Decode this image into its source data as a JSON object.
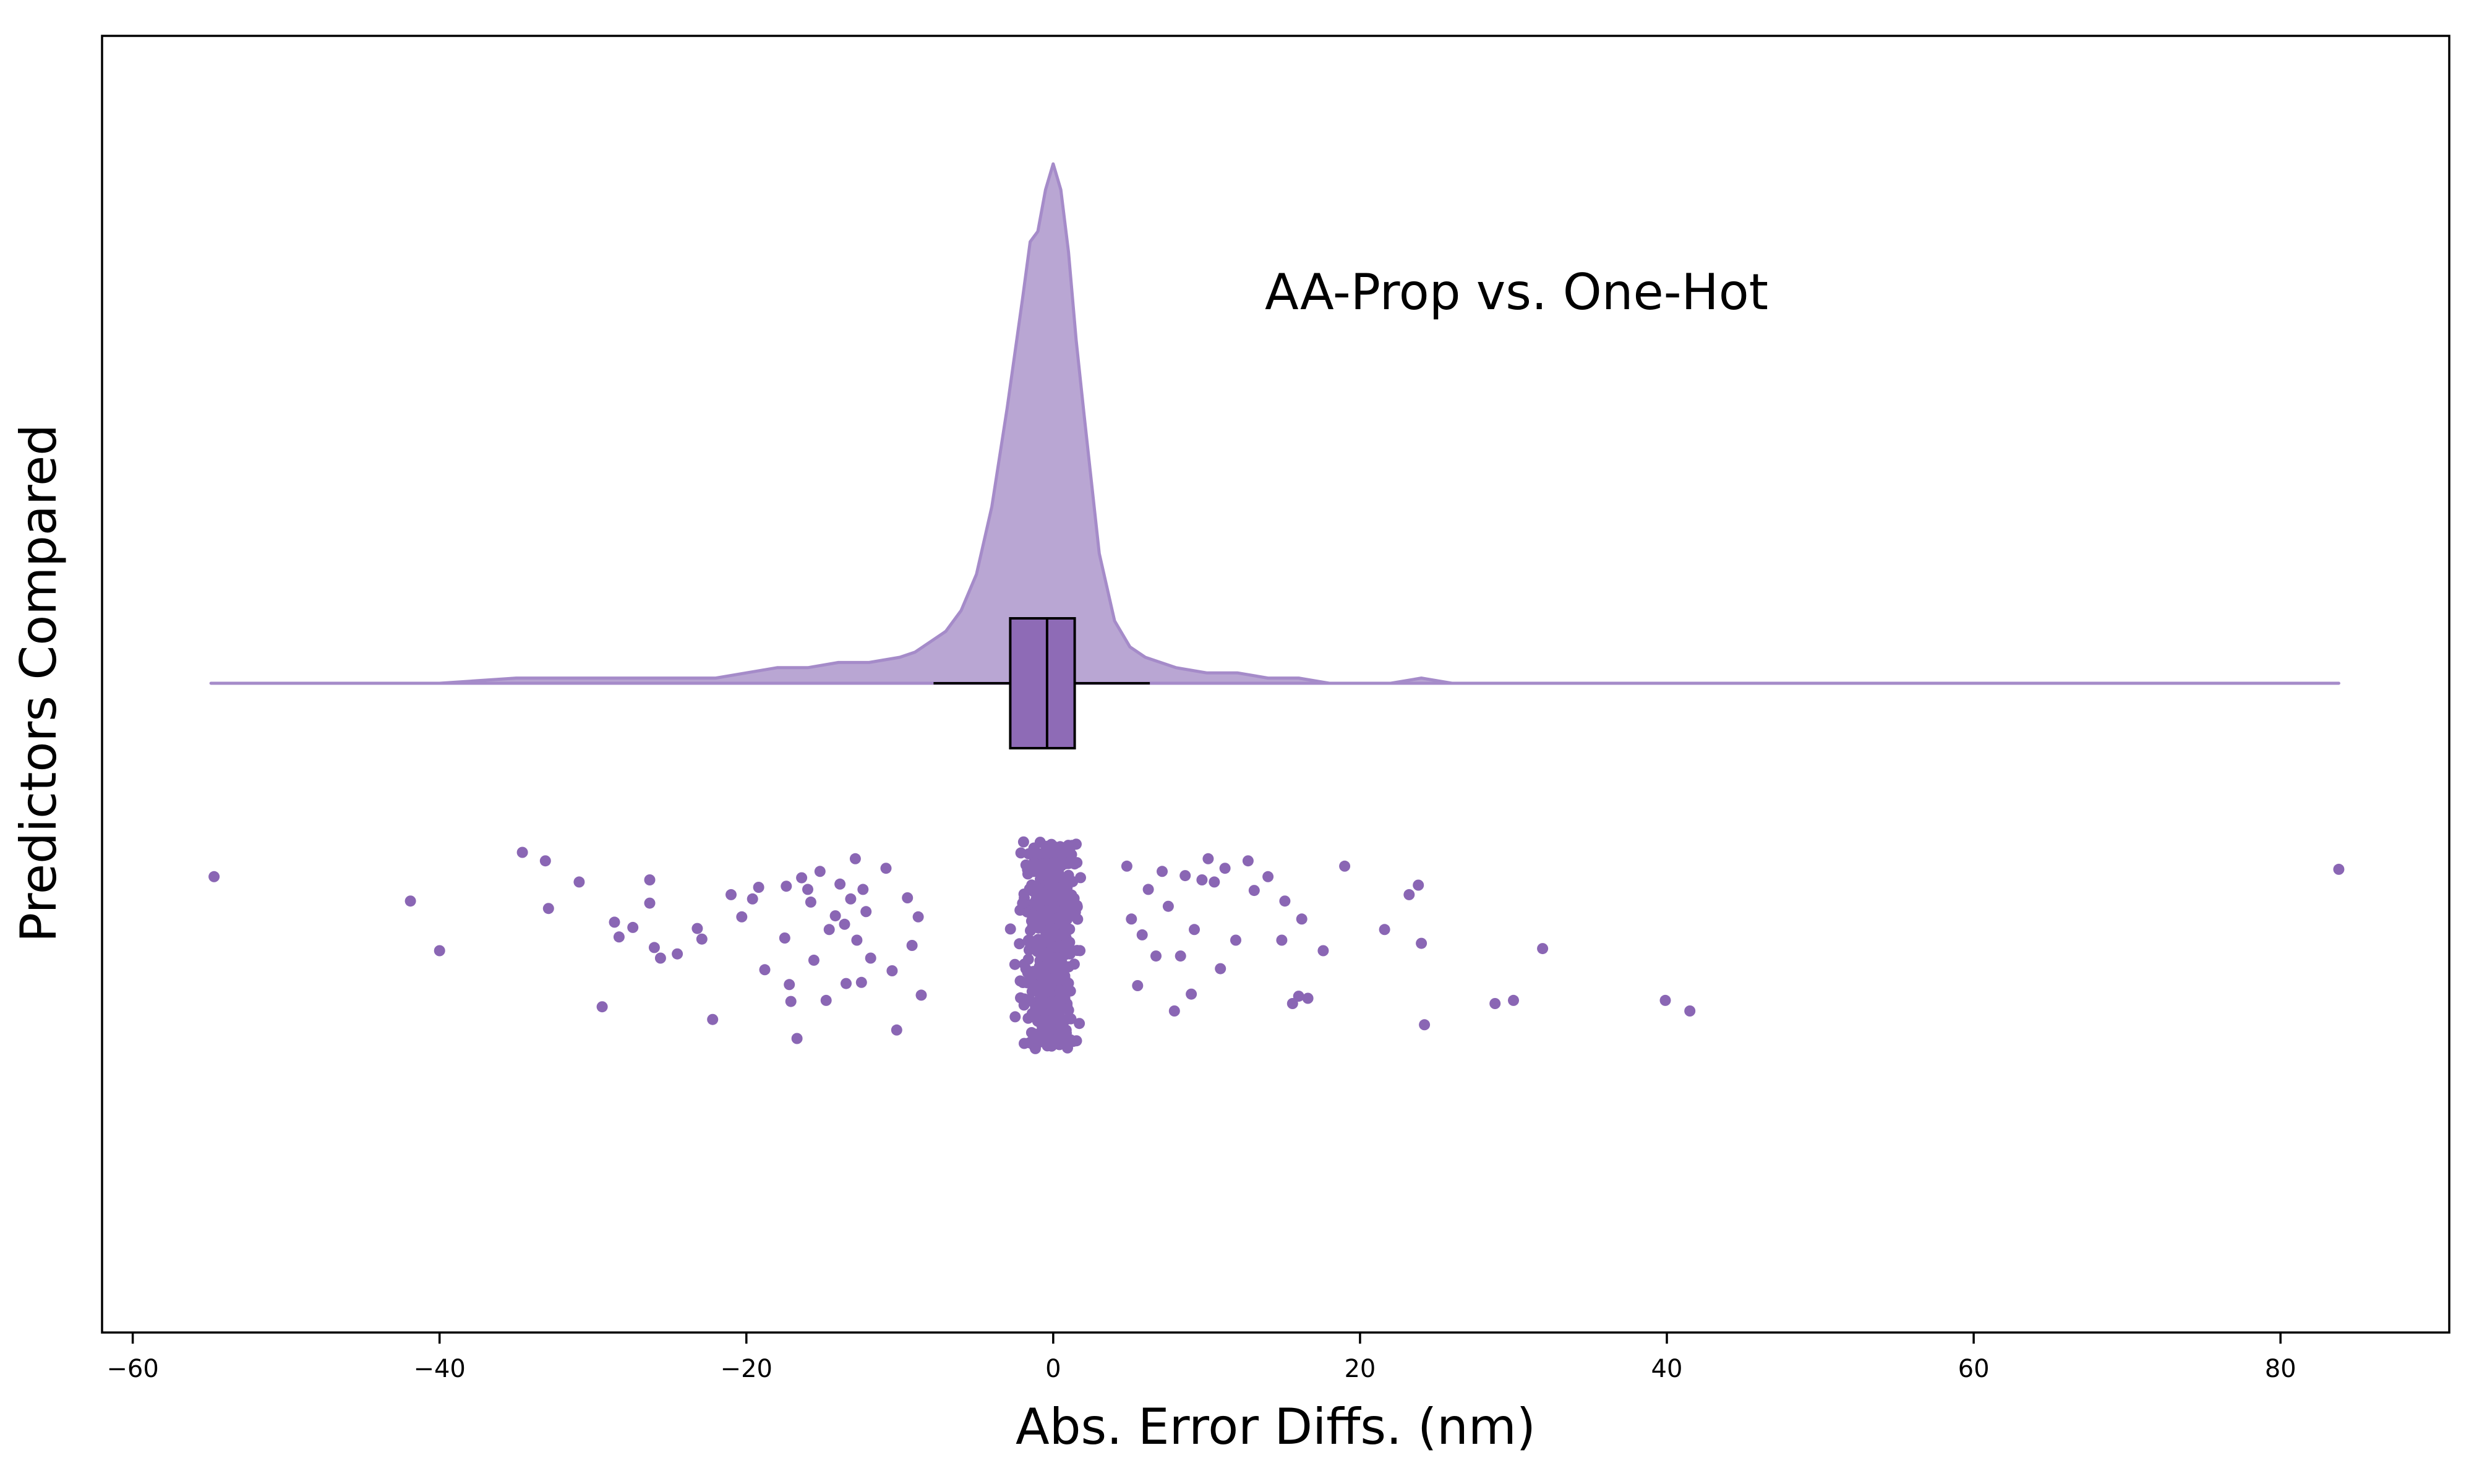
{
  "chart_data": {
    "type": "raincloud",
    "orientation": "horizontal",
    "annotation": "AA-Prop vs. One-Hot",
    "xlabel": "Abs. Error Diffs. (nm)",
    "ylabel": "Predictors Compared",
    "xlim": [
      -62,
      91
    ],
    "xticks": [
      -60,
      -40,
      -20,
      0,
      20,
      40,
      60,
      80
    ],
    "xtick_labels": [
      "−60",
      "−40",
      "−20",
      "0",
      "20",
      "40",
      "60",
      "80"
    ],
    "grid": false,
    "colors": {
      "fill": "#B9A6D3",
      "edge": "#A58BC9",
      "box_fill": "#8E6BB6",
      "points": "#8A66B4"
    },
    "density": {
      "x": [
        -54.9,
        -50,
        -45,
        -40,
        -35,
        -30,
        -27,
        -25,
        -22,
        -20,
        -18,
        -16,
        -14,
        -12,
        -10,
        -9,
        -8,
        -7,
        -6,
        -5,
        -4,
        -3,
        -2,
        -1.5,
        -1,
        -0.5,
        0,
        0.5,
        1,
        1.5,
        2,
        3,
        4,
        5,
        6,
        7,
        8,
        10,
        12,
        14,
        16,
        18,
        20,
        22,
        24,
        26,
        30,
        35,
        40,
        45,
        50,
        60,
        70,
        80,
        83.8
      ],
      "height": [
        0.0,
        0.0,
        0.0,
        0.0,
        0.01,
        0.01,
        0.01,
        0.01,
        0.01,
        0.02,
        0.03,
        0.03,
        0.04,
        0.04,
        0.05,
        0.06,
        0.08,
        0.1,
        0.14,
        0.21,
        0.34,
        0.53,
        0.74,
        0.85,
        0.87,
        0.95,
        1.0,
        0.95,
        0.83,
        0.66,
        0.52,
        0.25,
        0.12,
        0.07,
        0.05,
        0.04,
        0.03,
        0.02,
        0.02,
        0.01,
        0.01,
        0.0,
        0.0,
        0.0,
        0.01,
        0.0,
        0.0,
        0.0,
        0.0,
        0.0,
        0.0,
        0.0,
        0.0,
        0.0,
        0.0
      ]
    },
    "box": {
      "q1": -2.8,
      "median": -0.4,
      "q3": 1.4,
      "whisker_low": -7.8,
      "whisker_high": 6.3
    },
    "points": {
      "outliers": [
        [
          -54.7,
          0.35
        ],
        [
          -41.9,
          0.58
        ],
        [
          -40.0,
          1.05
        ],
        [
          -34.6,
          0.12
        ],
        [
          -33.1,
          0.2
        ],
        [
          -32.9,
          0.65
        ],
        [
          -30.9,
          0.4
        ],
        [
          -29.4,
          1.58
        ],
        [
          -28.6,
          0.78
        ],
        [
          -28.3,
          0.92
        ],
        [
          -27.4,
          0.83
        ],
        [
          -26.3,
          0.38
        ],
        [
          -26.3,
          0.6
        ],
        [
          -26.0,
          1.02
        ],
        [
          -25.6,
          1.12
        ],
        [
          -24.5,
          1.08
        ],
        [
          -23.2,
          0.84
        ],
        [
          -22.9,
          0.94
        ],
        [
          -22.2,
          1.7
        ],
        [
          -21.0,
          0.52
        ],
        [
          -20.3,
          0.73
        ],
        [
          -19.6,
          0.56
        ],
        [
          -19.2,
          0.45
        ],
        [
          -18.8,
          1.23
        ],
        [
          -17.4,
          0.44
        ],
        [
          -17.5,
          0.93
        ],
        [
          -17.2,
          1.37
        ],
        [
          -17.1,
          1.53
        ],
        [
          -16.7,
          1.88
        ],
        [
          -16.4,
          0.36
        ],
        [
          -16.0,
          0.47
        ],
        [
          -15.8,
          0.59
        ],
        [
          -15.6,
          1.14
        ],
        [
          -15.2,
          0.3
        ],
        [
          -14.8,
          1.52
        ],
        [
          -14.6,
          0.85
        ],
        [
          -14.2,
          0.72
        ],
        [
          -13.9,
          0.42
        ],
        [
          -13.6,
          0.8
        ],
        [
          -13.5,
          1.36
        ],
        [
          -13.2,
          0.56
        ],
        [
          -12.9,
          0.18
        ],
        [
          -12.8,
          0.95
        ],
        [
          -12.5,
          1.35
        ],
        [
          -12.4,
          0.47
        ],
        [
          -12.2,
          0.68
        ],
        [
          -11.9,
          1.12
        ],
        [
          -10.9,
          0.27
        ],
        [
          -10.5,
          1.24
        ],
        [
          -10.2,
          1.8
        ],
        [
          -9.5,
          0.55
        ],
        [
          -9.2,
          1.0
        ],
        [
          -8.8,
          0.73
        ],
        [
          -8.6,
          1.47
        ],
        [
          4.8,
          0.25
        ],
        [
          5.1,
          0.75
        ],
        [
          5.5,
          1.38
        ],
        [
          5.8,
          0.9
        ],
        [
          6.2,
          0.47
        ],
        [
          6.7,
          1.1
        ],
        [
          7.1,
          0.3
        ],
        [
          7.5,
          0.63
        ],
        [
          7.9,
          1.62
        ],
        [
          8.3,
          1.1
        ],
        [
          8.6,
          0.34
        ],
        [
          9.0,
          1.46
        ],
        [
          9.2,
          0.85
        ],
        [
          9.7,
          0.38
        ],
        [
          10.1,
          0.18
        ],
        [
          10.5,
          0.4
        ],
        [
          10.9,
          1.22
        ],
        [
          11.2,
          0.27
        ],
        [
          11.9,
          0.95
        ],
        [
          12.7,
          0.2
        ],
        [
          13.1,
          0.48
        ],
        [
          14.0,
          0.35
        ],
        [
          14.9,
          0.95
        ],
        [
          15.1,
          0.58
        ],
        [
          15.6,
          1.55
        ],
        [
          16.0,
          1.48
        ],
        [
          16.2,
          0.75
        ],
        [
          16.6,
          1.5
        ],
        [
          17.6,
          1.05
        ],
        [
          19.0,
          0.25
        ],
        [
          21.6,
          0.85
        ],
        [
          23.2,
          0.52
        ],
        [
          23.8,
          0.43
        ],
        [
          24.0,
          0.98
        ],
        [
          24.2,
          1.75
        ],
        [
          28.8,
          1.55
        ],
        [
          30.0,
          1.52
        ],
        [
          31.9,
          1.03
        ],
        [
          39.9,
          1.52
        ],
        [
          41.5,
          1.62
        ],
        [
          83.8,
          0.28
        ]
      ],
      "core": {
        "x_range": [
          -8.2,
          4.7
        ],
        "count": 520
      }
    }
  }
}
